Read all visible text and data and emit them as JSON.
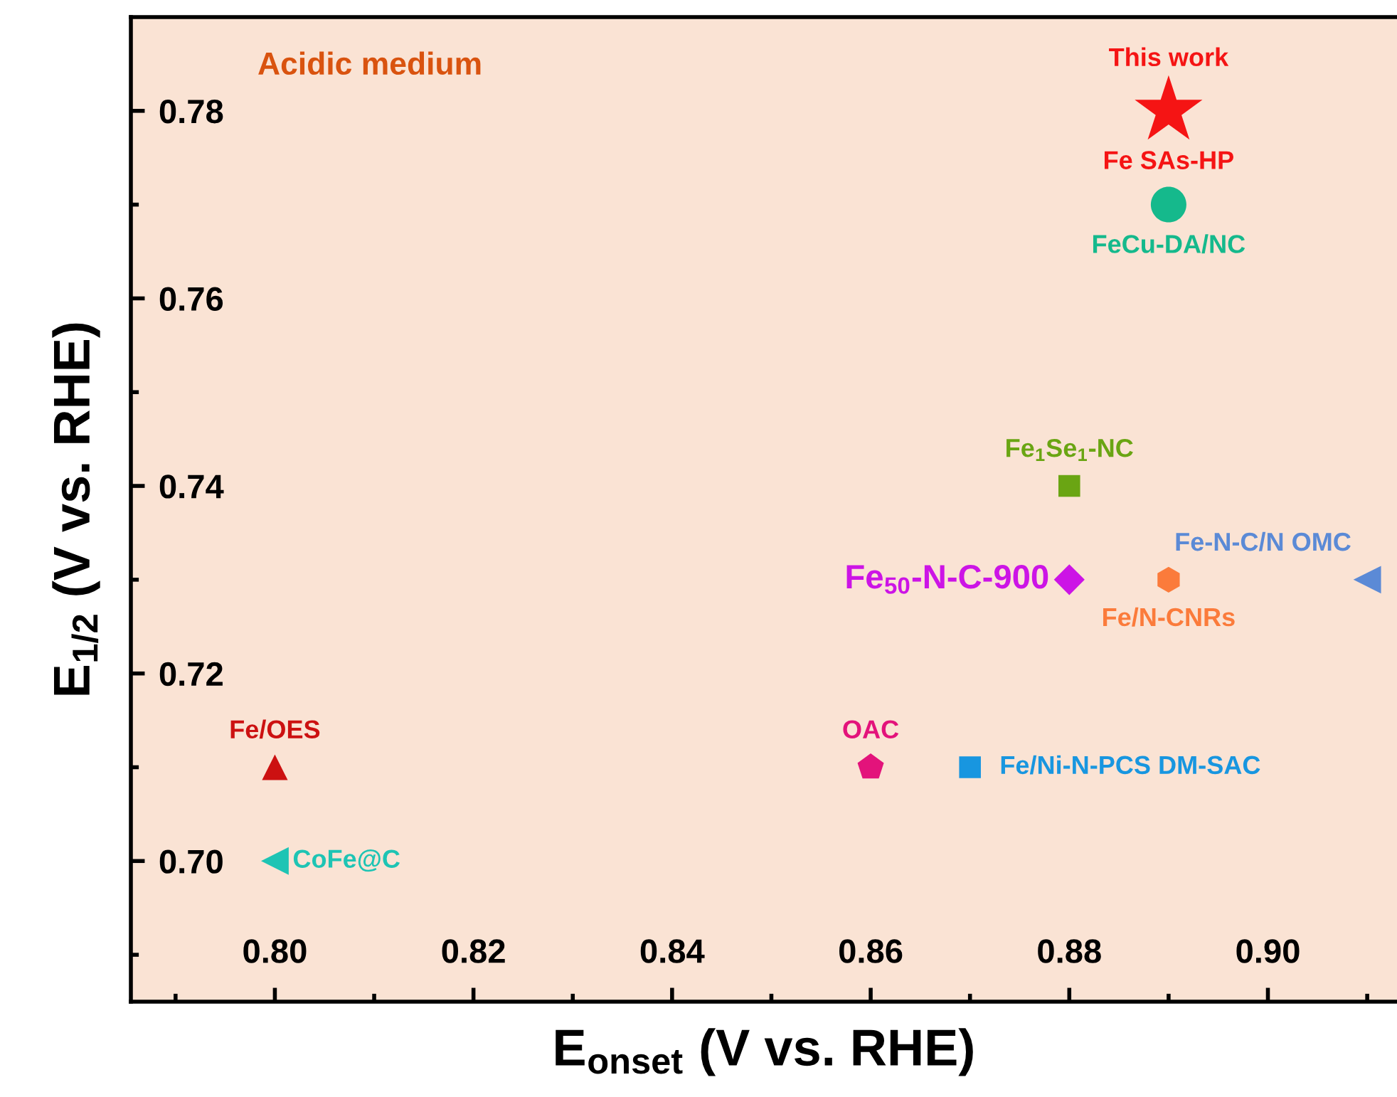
{
  "chart_data": {
    "type": "scatter",
    "xlabel": "E$_{onset}$ (V vs. RHE)",
    "ylabel": "E$_{1/2}$ (V vs. RHE)",
    "xlim": [
      0.7855,
      0.913
    ],
    "ylim": [
      0.685,
      0.79
    ],
    "xticks": [
      {
        "value": 0.8,
        "label": "0.80"
      },
      0.82,
      0.84,
      0.86,
      0.88,
      {
        "value": 0.9,
        "label": "0.90"
      }
    ],
    "yticks": [
      {
        "value": 0.7,
        "label": "0.70"
      },
      0.72,
      0.74,
      0.76,
      0.78
    ],
    "grid": false,
    "legend": false,
    "annotations": [
      "Acidic medium",
      {
        "text": "This work",
        "x": 0.89,
        "y": 0.78
      }
    ],
    "series": [
      {
        "name": "Fe SAs-HP",
        "color": "#f51414",
        "marker": "star",
        "x": [
          0.89
        ],
        "values": [
          0.78
        ]
      },
      {
        "name": "FeCu-DA/NC",
        "color": "#15b98c",
        "marker": "circle",
        "x": [
          0.89
        ],
        "values": [
          0.77
        ]
      },
      {
        "name": "Fe$_{1}$Se$_{1}$-NC",
        "color": "#6aa513",
        "marker": "square",
        "x": [
          0.88
        ],
        "values": [
          0.74
        ]
      },
      {
        "name": "Fe$_{50}$-N-C-900",
        "color": "#cc14e6",
        "marker": "diamond",
        "x": [
          0.88
        ],
        "values": [
          0.73
        ]
      },
      {
        "name": "Fe/N-CNRs",
        "color": "#fb7b3b",
        "x": [
          0.89
        ],
        "values": [
          0.73
        ]
      },
      {
        "name": "Fe-N-C/N OMC",
        "color": "#5b8ad6",
        "marker": "triangle-left",
        "x": [
          0.91
        ],
        "values": [
          0.73
        ]
      },
      {
        "name": "Fe/OES",
        "color": "#cc1111",
        "marker": "triangle",
        "x": [
          0.8
        ],
        "values": [
          0.71
        ]
      },
      {
        "name": "OAC",
        "color": "#e3137b",
        "x": [
          0.86
        ],
        "values": [
          0.71
        ]
      },
      {
        "name": "Fe/Ni-N-PCS DM-SAC",
        "color": "#1896e0",
        "marker": "square",
        "x": [
          0.87
        ],
        "values": [
          0.71
        ]
      },
      {
        "name": "CoFe@C",
        "color": "#1ec4b4",
        "marker": "triangle-left",
        "x": [
          0.8
        ],
        "values": [
          0.7
        ]
      }
    ]
  }
}
